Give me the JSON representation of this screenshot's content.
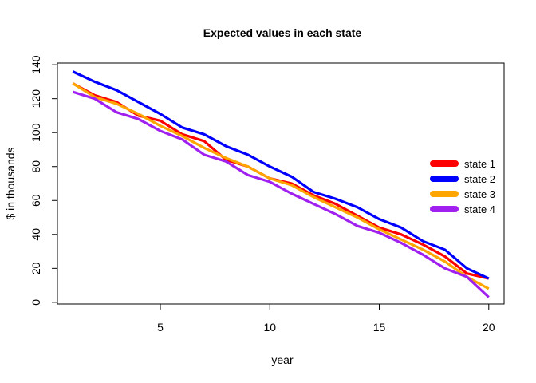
{
  "chart_data": {
    "type": "line",
    "title": "Expected values in each state",
    "xlabel": "year",
    "ylabel": "$ in thousands",
    "xlim": [
      0.3,
      20.7
    ],
    "ylim": [
      -1,
      141
    ],
    "x_ticks": [
      5,
      10,
      15,
      20
    ],
    "y_ticks": [
      0,
      20,
      40,
      60,
      80,
      100,
      120,
      140
    ],
    "grid": false,
    "legend_position": "right",
    "x": [
      1,
      2,
      3,
      4,
      5,
      6,
      7,
      8,
      9,
      10,
      11,
      12,
      13,
      14,
      15,
      16,
      17,
      18,
      19,
      20
    ],
    "series": [
      {
        "name": "state 1",
        "color": "#FF0000",
        "values": [
          129,
          122,
          118,
          110,
          107,
          99,
          95,
          84,
          80,
          73,
          70,
          63,
          58,
          51,
          44,
          40,
          34,
          27,
          17,
          14
        ]
      },
      {
        "name": "state 2",
        "color": "#0000FF",
        "values": [
          136,
          130,
          125,
          118,
          111,
          103,
          99,
          92,
          87,
          80,
          74,
          65,
          61,
          56,
          49,
          44,
          36,
          31,
          20,
          14
        ]
      },
      {
        "name": "state 3",
        "color": "#FFA500",
        "values": [
          129,
          121,
          117,
          111,
          104,
          98,
          91,
          85,
          80,
          73,
          69,
          62,
          56,
          50,
          43,
          37,
          31,
          24,
          15,
          8
        ]
      },
      {
        "name": "state 4",
        "color": "#A020F0",
        "values": [
          124,
          120,
          112,
          108,
          101,
          96,
          87,
          83,
          75,
          71,
          64,
          58,
          52,
          45,
          41,
          35,
          28,
          20,
          15,
          3
        ]
      }
    ]
  }
}
